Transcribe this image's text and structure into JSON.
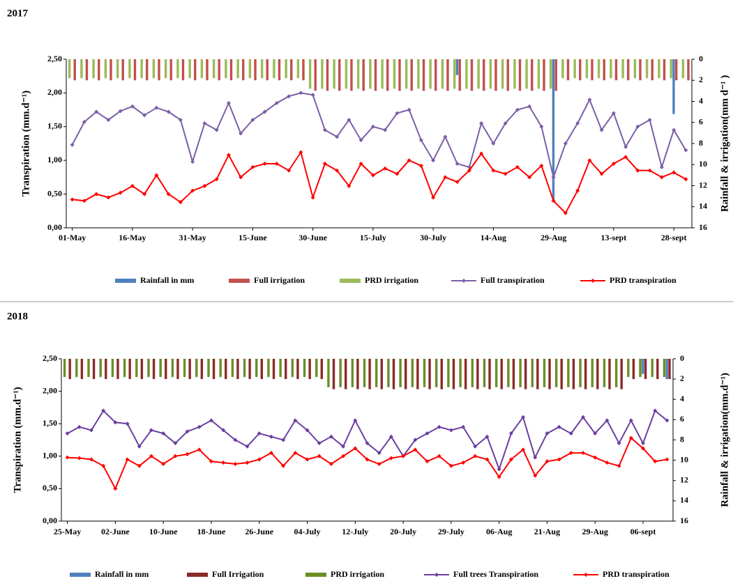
{
  "chart_data": [
    {
      "type": "combo",
      "title": "2017",
      "y_label": "Transpiration  (mm.d⁻¹)",
      "y2_label": "Rainfall & irrigation(mm  d⁻¹ )",
      "ylim": [
        0,
        2.5
      ],
      "yticks": [
        {
          "value": 0,
          "label": "0,00"
        },
        {
          "value": 0.5,
          "label": "0,50"
        },
        {
          "value": 1,
          "label": "1,00"
        },
        {
          "value": 1.5,
          "label": "1,50"
        },
        {
          "value": 2,
          "label": "2,00"
        },
        {
          "value": 2.5,
          "label": "2,50"
        }
      ],
      "y2lim": [
        0,
        16
      ],
      "y2_inverted": true,
      "y2ticks": [
        0,
        2,
        4,
        6,
        8,
        10,
        12,
        14,
        16
      ],
      "categories": [
        "01-May",
        null,
        null,
        null,
        null,
        "16-May",
        null,
        null,
        null,
        null,
        "31-May",
        null,
        null,
        null,
        null,
        "15-June",
        null,
        null,
        null,
        null,
        "30-June",
        null,
        null,
        null,
        null,
        "15-July",
        null,
        null,
        null,
        null,
        "30-July",
        null,
        null,
        null,
        null,
        "14-Aug",
        null,
        null,
        null,
        null,
        "29-Aug",
        null,
        null,
        null,
        null,
        "13-sept",
        null,
        null,
        null,
        null,
        "28-sept",
        null
      ],
      "series": [
        {
          "name": "Rainfall in mm",
          "type": "bar",
          "axis": "y2",
          "color": "#4f81bd",
          "values": [
            null,
            null,
            null,
            null,
            null,
            null,
            null,
            null,
            null,
            null,
            null,
            null,
            null,
            null,
            null,
            null,
            null,
            null,
            null,
            null,
            null,
            null,
            null,
            null,
            null,
            null,
            null,
            null,
            null,
            null,
            null,
            null,
            1.5,
            null,
            null,
            null,
            null,
            null,
            null,
            null,
            13.5,
            null,
            null,
            null,
            null,
            null,
            null,
            null,
            null,
            null,
            5.2,
            null
          ]
        },
        {
          "name": "Full irrigation",
          "type": "bar",
          "axis": "y2",
          "color": "#c0504d",
          "values": [
            2,
            2,
            2,
            2,
            2,
            2,
            2,
            2,
            2,
            2,
            2,
            2,
            2,
            2,
            2,
            2,
            2,
            2,
            2,
            2,
            3,
            3,
            3,
            3,
            3,
            3,
            3,
            3,
            3,
            3,
            3,
            3,
            3,
            3,
            3,
            3,
            3,
            3,
            3,
            3,
            3,
            2,
            2,
            2,
            2,
            2,
            2,
            2,
            2,
            2,
            2,
            2
          ]
        },
        {
          "name": "PRD irrigation",
          "type": "bar",
          "axis": "y2",
          "color": "#9bbb59",
          "values": [
            1.8,
            1.8,
            1.8,
            1.8,
            1.8,
            1.8,
            1.8,
            1.8,
            1.8,
            1.8,
            1.8,
            1.8,
            1.8,
            1.8,
            1.8,
            1.8,
            1.8,
            1.8,
            1.8,
            1.8,
            2.8,
            2.8,
            2.8,
            2.8,
            2.8,
            2.8,
            2.8,
            2.8,
            2.8,
            2.8,
            2.8,
            2.8,
            2.8,
            2.8,
            2.8,
            2.8,
            2.8,
            2.8,
            2.8,
            2.8,
            2.8,
            1.8,
            1.8,
            1.8,
            1.8,
            1.8,
            1.8,
            1.8,
            1.8,
            1.8,
            1.8,
            1.8
          ]
        },
        {
          "name": "Full transpiration",
          "type": "line",
          "color": "#7b5ea7",
          "values": [
            1.23,
            1.57,
            1.72,
            1.6,
            1.73,
            1.8,
            1.67,
            1.78,
            1.72,
            1.6,
            0.98,
            1.55,
            1.45,
            1.85,
            1.4,
            1.6,
            1.72,
            1.85,
            1.95,
            2.0,
            1.97,
            1.45,
            1.35,
            1.6,
            1.3,
            1.5,
            1.45,
            1.7,
            1.75,
            1.3,
            1.0,
            1.35,
            0.95,
            0.9,
            1.55,
            1.25,
            1.55,
            1.75,
            1.8,
            1.5,
            0.75,
            1.25,
            1.55,
            1.9,
            1.45,
            1.7,
            1.2,
            1.5,
            1.6,
            0.9,
            1.45,
            1.15
          ]
        },
        {
          "name": "PRD transpiration",
          "type": "line",
          "color": "#ff0000",
          "values": [
            0.42,
            0.4,
            0.5,
            0.45,
            0.52,
            0.62,
            0.5,
            0.78,
            0.5,
            0.38,
            0.55,
            0.62,
            0.72,
            1.08,
            0.75,
            0.9,
            0.95,
            0.95,
            0.85,
            1.12,
            0.45,
            0.95,
            0.85,
            0.62,
            0.95,
            0.78,
            0.88,
            0.8,
            1.0,
            0.92,
            0.45,
            0.75,
            0.68,
            0.85,
            1.1,
            0.85,
            0.8,
            0.9,
            0.75,
            0.92,
            0.4,
            0.22,
            0.55,
            1.0,
            0.8,
            0.95,
            1.05,
            0.85,
            0.85,
            0.75,
            0.82,
            0.72
          ]
        }
      ]
    },
    {
      "type": "combo",
      "title": "2018",
      "y_label": "Transpiration  (mm.d⁻¹)",
      "y2_label": "Rainfall & irrigation(mm.d⁻¹)",
      "ylim": [
        0,
        2.5
      ],
      "yticks": [
        {
          "value": 0,
          "label": "0,00"
        },
        {
          "value": 0.5,
          "label": "0,50"
        },
        {
          "value": 1,
          "label": "1,00"
        },
        {
          "value": 1.5,
          "label": "1,50"
        },
        {
          "value": 2,
          "label": "2,00"
        },
        {
          "value": 2.5,
          "label": "2,50"
        }
      ],
      "y2lim": [
        0,
        16
      ],
      "y2_inverted": true,
      "y2ticks": [
        0,
        2,
        4,
        6,
        8,
        10,
        12,
        14,
        16
      ],
      "categories": [
        "25-May",
        null,
        null,
        null,
        "02-June",
        null,
        null,
        null,
        "10-June",
        null,
        null,
        null,
        "18-June",
        null,
        null,
        null,
        "26-June",
        null,
        null,
        null,
        "04-July",
        null,
        null,
        null,
        "12-July",
        null,
        null,
        null,
        "20-July",
        null,
        null,
        null,
        "29-July",
        null,
        null,
        null,
        "06-Aug",
        null,
        null,
        null,
        "21-Aug",
        null,
        null,
        null,
        "29-Aug",
        null,
        null,
        null,
        "06-sept",
        null,
        null
      ],
      "series": [
        {
          "name": "Rainfall in mm",
          "type": "bar",
          "axis": "y2",
          "color": "#4f81bd",
          "values": [
            null,
            null,
            null,
            null,
            null,
            null,
            null,
            null,
            null,
            null,
            null,
            null,
            null,
            null,
            null,
            null,
            null,
            null,
            null,
            null,
            null,
            null,
            null,
            null,
            null,
            null,
            null,
            null,
            null,
            null,
            null,
            null,
            null,
            null,
            null,
            null,
            null,
            null,
            null,
            null,
            null,
            null,
            null,
            null,
            null,
            null,
            null,
            null,
            1.5,
            null,
            2.0
          ]
        },
        {
          "name": "Full Irrigation",
          "type": "bar",
          "axis": "y2",
          "color": "#8b2a2a",
          "values": [
            2,
            2,
            2,
            2,
            2,
            2,
            2,
            2,
            2,
            2,
            2,
            2,
            2,
            2,
            2,
            2,
            2,
            2,
            2,
            2,
            2,
            2,
            3,
            3,
            3,
            3,
            3,
            3,
            3,
            3,
            3,
            3,
            3,
            3,
            3,
            3,
            3,
            3,
            3,
            3,
            3,
            3,
            3,
            3,
            3,
            3,
            3,
            2,
            2,
            2,
            2
          ]
        },
        {
          "name": "PRD irrigation",
          "type": "bar",
          "axis": "y2",
          "color": "#6b8e23",
          "values": [
            1.8,
            1.8,
            1.8,
            1.8,
            1.8,
            1.8,
            1.8,
            1.8,
            1.8,
            1.8,
            1.8,
            1.8,
            1.8,
            1.8,
            1.8,
            1.8,
            1.8,
            1.8,
            1.8,
            1.8,
            1.8,
            1.8,
            2.8,
            2.8,
            2.8,
            2.8,
            2.8,
            2.8,
            2.8,
            2.8,
            2.8,
            2.8,
            2.8,
            2.8,
            2.8,
            2.8,
            2.8,
            2.8,
            2.8,
            2.8,
            2.8,
            2.8,
            2.8,
            2.8,
            2.8,
            2.8,
            2.8,
            1.8,
            1.8,
            1.8,
            1.8
          ]
        },
        {
          "name": "Full trees Transpiration",
          "type": "line",
          "color": "#6a3fa0",
          "values": [
            1.35,
            1.45,
            1.4,
            1.7,
            1.52,
            1.5,
            1.15,
            1.4,
            1.35,
            1.2,
            1.38,
            1.45,
            1.55,
            1.4,
            1.25,
            1.15,
            1.35,
            1.3,
            1.25,
            1.55,
            1.4,
            1.2,
            1.3,
            1.15,
            1.55,
            1.2,
            1.05,
            1.3,
            1.0,
            1.25,
            1.35,
            1.45,
            1.4,
            1.45,
            1.15,
            1.3,
            0.8,
            1.35,
            1.6,
            0.98,
            1.35,
            1.45,
            1.35,
            1.6,
            1.35,
            1.55,
            1.2,
            1.55,
            1.2,
            1.7,
            1.55
          ]
        },
        {
          "name": "PRD  transpiration",
          "type": "line",
          "color": "#ff0000",
          "values": [
            0.98,
            0.97,
            0.95,
            0.85,
            0.5,
            0.95,
            0.85,
            1.0,
            0.88,
            1.0,
            1.03,
            1.1,
            0.92,
            0.9,
            0.88,
            0.9,
            0.95,
            1.05,
            0.85,
            1.05,
            0.95,
            1.0,
            0.88,
            1.0,
            1.12,
            0.95,
            0.88,
            0.97,
            1.0,
            1.1,
            0.92,
            1.0,
            0.85,
            0.9,
            1.0,
            0.95,
            0.68,
            0.95,
            1.1,
            0.7,
            0.92,
            0.95,
            1.05,
            1.05,
            0.98,
            0.9,
            0.85,
            1.28,
            1.12,
            0.92,
            0.95
          ]
        }
      ]
    }
  ]
}
